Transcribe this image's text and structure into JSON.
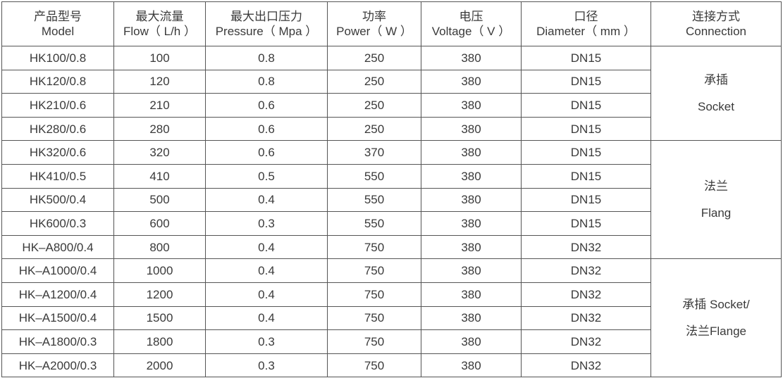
{
  "headers": [
    {
      "cn": "产品型号",
      "en": "Model"
    },
    {
      "cn": "最大流量",
      "en": "Flow（ L/h ）"
    },
    {
      "cn": "最大出口压力",
      "en": "Pressure（ Mpa ）"
    },
    {
      "cn": "功率",
      "en": "Power（ W ）"
    },
    {
      "cn": "电压",
      "en": "Voltage（ V ）"
    },
    {
      "cn": "口径",
      "en": "Diameter（ mm ）"
    },
    {
      "cn": "连接方式",
      "en": "Connection"
    }
  ],
  "rows": [
    [
      "HK100/0.8",
      "100",
      "0.8",
      "250",
      "380",
      "DN15"
    ],
    [
      "HK120/0.8",
      "120",
      "0.8",
      "250",
      "380",
      "DN15"
    ],
    [
      "HK210/0.6",
      "210",
      "0.6",
      "250",
      "380",
      "DN15"
    ],
    [
      "HK280/0.6",
      "280",
      "0.6",
      "250",
      "380",
      "DN15"
    ],
    [
      "HK320/0.6",
      "320",
      "0.6",
      "370",
      "380",
      "DN15"
    ],
    [
      "HK410/0.5",
      "410",
      "0.5",
      "550",
      "380",
      "DN15"
    ],
    [
      "HK500/0.4",
      "500",
      "0.4",
      "550",
      "380",
      "DN15"
    ],
    [
      "HK600/0.3",
      "600",
      "0.3",
      "550",
      "380",
      "DN15"
    ],
    [
      "HK–A800/0.4",
      "800",
      "0.4",
      "750",
      "380",
      "DN32"
    ],
    [
      "HK–A1000/0.4",
      "1000",
      "0.4",
      "750",
      "380",
      "DN32"
    ],
    [
      "HK–A1200/0.4",
      "1200",
      "0.4",
      "750",
      "380",
      "DN32"
    ],
    [
      "HK–A1500/0.4",
      "1500",
      "0.4",
      "750",
      "380",
      "DN32"
    ],
    [
      "HK–A1800/0.3",
      "1800",
      "0.3",
      "750",
      "380",
      "DN32"
    ],
    [
      "HK–A2000/0.3",
      "2000",
      "0.3",
      "750",
      "380",
      "DN32"
    ]
  ],
  "connections": [
    {
      "line1": "承插",
      "line2": "Socket",
      "rowspan": 4
    },
    {
      "line1": "法兰",
      "line2": "Flang",
      "rowspan": 5
    },
    {
      "line1": "承插 Socket/",
      "line2": "法兰Flange",
      "rowspan": 5
    }
  ]
}
